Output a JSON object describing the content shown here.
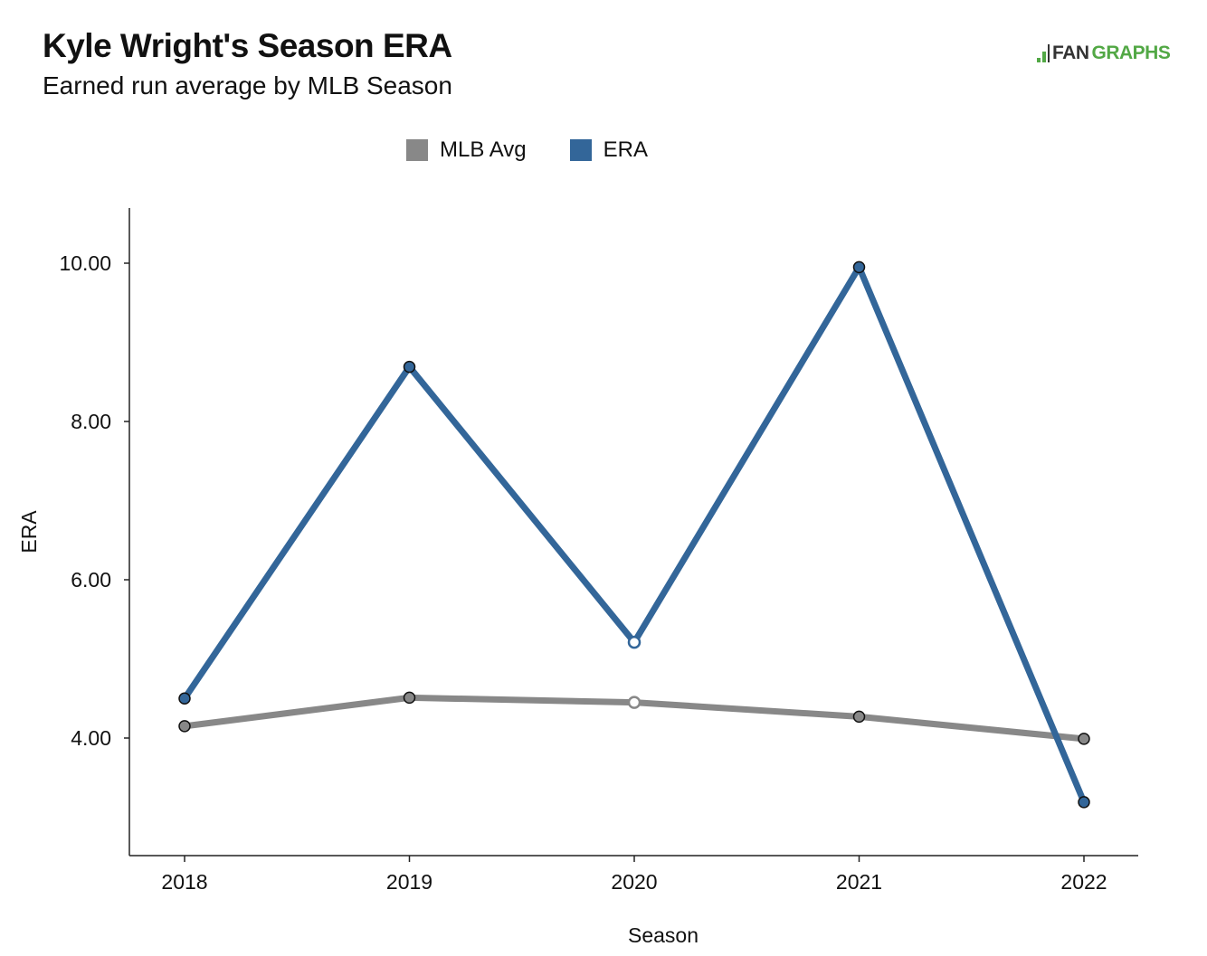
{
  "header": {
    "title": "Kyle Wright's Season ERA",
    "subtitle": "Earned run average by MLB Season"
  },
  "logo": {
    "part1": "FAN",
    "part2": "GRAPHS",
    "color_green": "#52a845",
    "color_dark": "#333333"
  },
  "chart_data": {
    "type": "line",
    "x": [
      "2018",
      "2019",
      "2020",
      "2021",
      "2022"
    ],
    "series": [
      {
        "name": "MLB Avg",
        "values": [
          4.15,
          4.51,
          4.45,
          4.27,
          3.99
        ],
        "color": "#888888"
      },
      {
        "name": "ERA",
        "values": [
          4.5,
          8.69,
          5.21,
          9.95,
          3.19
        ],
        "color": "#336699"
      }
    ],
    "open_markers_x": [
      "2020"
    ],
    "xlabel": "Season",
    "ylabel": "ERA",
    "yticks": [
      4,
      6,
      8,
      10
    ],
    "ytick_labels": [
      "4.00",
      "6.00",
      "8.00",
      "10.00"
    ],
    "ylim": [
      2.5,
      10.7
    ],
    "grid": false,
    "legend_position": "top-center"
  }
}
